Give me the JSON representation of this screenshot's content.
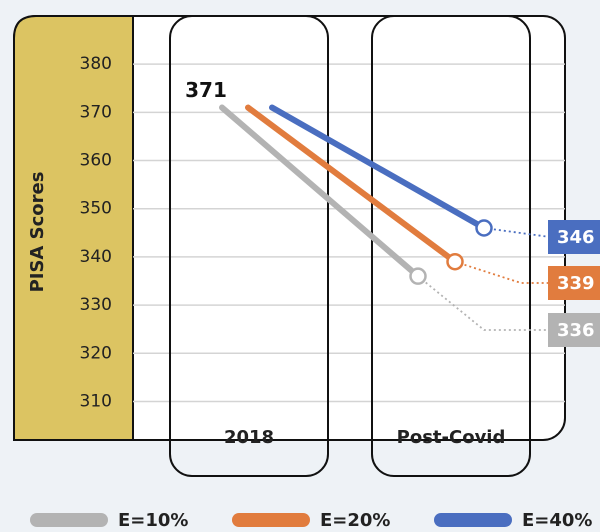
{
  "chart_data": {
    "type": "line",
    "categories": [
      "2018",
      "Post-Covid"
    ],
    "ylabel": "PISA Scores",
    "ylim": [
      302,
      390
    ],
    "yticks": [
      310,
      320,
      330,
      340,
      350,
      360,
      370,
      380
    ],
    "grid": true,
    "series": [
      {
        "name": "E=10%",
        "color": "#b3b3b3",
        "values": [
          371,
          336
        ]
      },
      {
        "name": "E=20%",
        "color": "#e17c3e",
        "values": [
          371,
          339
        ]
      },
      {
        "name": "E=40%",
        "color": "#4a6ec0",
        "values": [
          371,
          346
        ]
      }
    ]
  }
}
